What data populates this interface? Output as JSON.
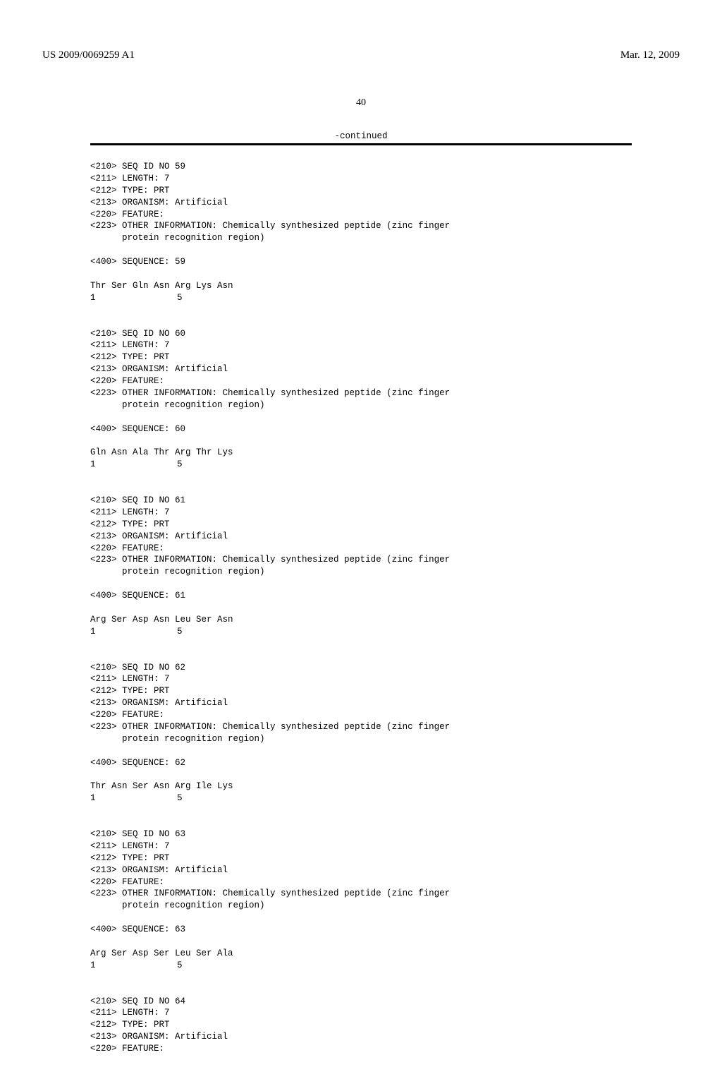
{
  "header": {
    "publication_number": "US 2009/0069259 A1",
    "date": "Mar. 12, 2009",
    "page_number": "40",
    "continued_label": "-continued"
  },
  "sequences": [
    {
      "id": "59",
      "header": {
        "seq_id": "<210> SEQ ID NO 59",
        "length": "<211> LENGTH: 7",
        "type": "<212> TYPE: PRT",
        "organism": "<213> ORGANISM: Artificial",
        "feature": "<220> FEATURE:",
        "other_info_1": "<223> OTHER INFORMATION: Chemically synthesized peptide (zinc finger",
        "other_info_2": "      protein recognition region)"
      },
      "sequence_label": "<400> SEQUENCE: 59",
      "aa_line": "Thr Ser Gln Asn Arg Lys Asn",
      "pos_1": "1",
      "pos_5": "5"
    },
    {
      "id": "60",
      "header": {
        "seq_id": "<210> SEQ ID NO 60",
        "length": "<211> LENGTH: 7",
        "type": "<212> TYPE: PRT",
        "organism": "<213> ORGANISM: Artificial",
        "feature": "<220> FEATURE:",
        "other_info_1": "<223> OTHER INFORMATION: Chemically synthesized peptide (zinc finger",
        "other_info_2": "      protein recognition region)"
      },
      "sequence_label": "<400> SEQUENCE: 60",
      "aa_line": "Gln Asn Ala Thr Arg Thr Lys",
      "pos_1": "1",
      "pos_5": "5"
    },
    {
      "id": "61",
      "header": {
        "seq_id": "<210> SEQ ID NO 61",
        "length": "<211> LENGTH: 7",
        "type": "<212> TYPE: PRT",
        "organism": "<213> ORGANISM: Artificial",
        "feature": "<220> FEATURE:",
        "other_info_1": "<223> OTHER INFORMATION: Chemically synthesized peptide (zinc finger",
        "other_info_2": "      protein recognition region)"
      },
      "sequence_label": "<400> SEQUENCE: 61",
      "aa_line": "Arg Ser Asp Asn Leu Ser Asn",
      "pos_1": "1",
      "pos_5": "5"
    },
    {
      "id": "62",
      "header": {
        "seq_id": "<210> SEQ ID NO 62",
        "length": "<211> LENGTH: 7",
        "type": "<212> TYPE: PRT",
        "organism": "<213> ORGANISM: Artificial",
        "feature": "<220> FEATURE:",
        "other_info_1": "<223> OTHER INFORMATION: Chemically synthesized peptide (zinc finger",
        "other_info_2": "      protein recognition region)"
      },
      "sequence_label": "<400> SEQUENCE: 62",
      "aa_line": "Thr Asn Ser Asn Arg Ile Lys",
      "pos_1": "1",
      "pos_5": "5"
    },
    {
      "id": "63",
      "header": {
        "seq_id": "<210> SEQ ID NO 63",
        "length": "<211> LENGTH: 7",
        "type": "<212> TYPE: PRT",
        "organism": "<213> ORGANISM: Artificial",
        "feature": "<220> FEATURE:",
        "other_info_1": "<223> OTHER INFORMATION: Chemically synthesized peptide (zinc finger",
        "other_info_2": "      protein recognition region)"
      },
      "sequence_label": "<400> SEQUENCE: 63",
      "aa_line": "Arg Ser Asp Ser Leu Ser Ala",
      "pos_1": "1",
      "pos_5": "5"
    },
    {
      "id": "64",
      "header": {
        "seq_id": "<210> SEQ ID NO 64",
        "length": "<211> LENGTH: 7",
        "type": "<212> TYPE: PRT",
        "organism": "<213> ORGANISM: Artificial",
        "feature": "<220> FEATURE:"
      }
    }
  ]
}
